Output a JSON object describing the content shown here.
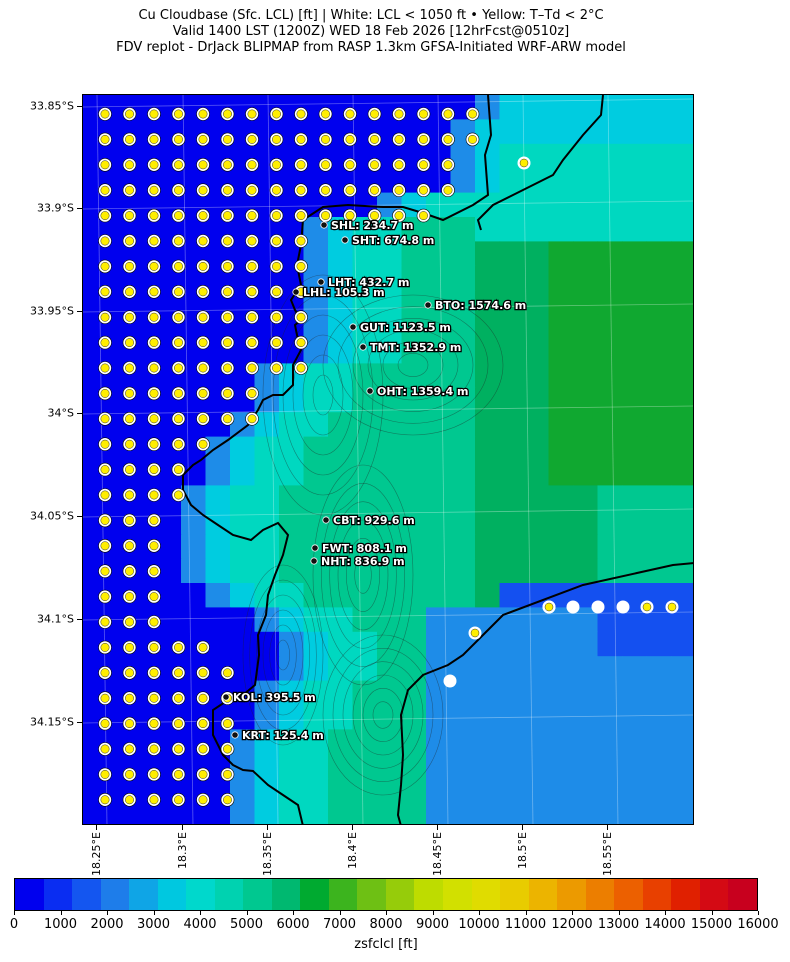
{
  "title": {
    "line1": "Cu Cloudbase (Sfc. LCL) [ft]  |  White: LCL < 1050 ft • Yellow: T–Td < 2°C",
    "line2": "Valid 1400 LST (1200Z) WED 18 Feb 2026 [12hrFcst@0510z]",
    "line3": "FDV replot - DrJack BLIPMAP from RASP 1.3km GFSA-Initiated WRF-ARW model"
  },
  "lat_labels": [
    "33.85°S",
    "33.9°S",
    "33.95°S",
    "34°S",
    "34.05°S",
    "34.1°S",
    "34.15°S"
  ],
  "lon_labels": [
    "18.25°E",
    "18.3°E",
    "18.35°E",
    "18.4°E",
    "18.45°E",
    "18.5°E",
    "18.55°E"
  ],
  "stations": [
    {
      "id": "SHL",
      "label": "SHL: 234.7 m"
    },
    {
      "id": "SHT",
      "label": "SHT: 674.8 m"
    },
    {
      "id": "LHT",
      "label": "LHT: 432.7 m"
    },
    {
      "id": "LHL",
      "label": "LHL: 105.3 m"
    },
    {
      "id": "BTO",
      "label": "BTO: 1574.6 m"
    },
    {
      "id": "GUT",
      "label": "GUT: 1123.5 m"
    },
    {
      "id": "TMT",
      "label": "TMT: 1352.9 m"
    },
    {
      "id": "OHT",
      "label": "OHT: 1359.4 m"
    },
    {
      "id": "CBT",
      "label": "CBT: 929.6 m"
    },
    {
      "id": "FWT",
      "label": "FWT: 808.1 m"
    },
    {
      "id": "NHT",
      "label": "NHT: 836.9 m"
    },
    {
      "id": "KOL",
      "label": "KOL: 395.5 m"
    },
    {
      "id": "KRT",
      "label": "KRT: 125.4 m"
    }
  ],
  "colorbar": {
    "title": "zsfclcl [ft]",
    "tick_labels": [
      "0",
      "1000",
      "2000",
      "3000",
      "4000",
      "5000",
      "6000",
      "7000",
      "8000",
      "9000",
      "10000",
      "11000",
      "12000",
      "13000",
      "14000",
      "15000",
      "16000"
    ],
    "colors": [
      "#0000ee",
      "#0a2df2",
      "#1456f0",
      "#1e7dea",
      "#0fa5e6",
      "#00c8e0",
      "#00d8cc",
      "#00d2b0",
      "#00c890",
      "#00b870",
      "#00aa30",
      "#3cb41e",
      "#6ec014",
      "#96cc0a",
      "#bedc00",
      "#d2e000",
      "#e0dc00",
      "#e8cc00",
      "#ecb400",
      "#ec9a00",
      "#ec7e00",
      "#ec6000",
      "#e84000",
      "#e02000",
      "#d40a14",
      "#c8001e"
    ]
  },
  "map_colors": {
    "ocean_lcl": "#0000ee",
    "band_blue": "#1450f0",
    "light_blue": "#1e8ce8",
    "cyan": "#00cce0",
    "teal": "#00d8c0",
    "green": "#00c890",
    "dark_green": "#00b060",
    "grass": "#10a830",
    "marker_yellow": "#ffee00",
    "marker_white": "#ffffff"
  }
}
